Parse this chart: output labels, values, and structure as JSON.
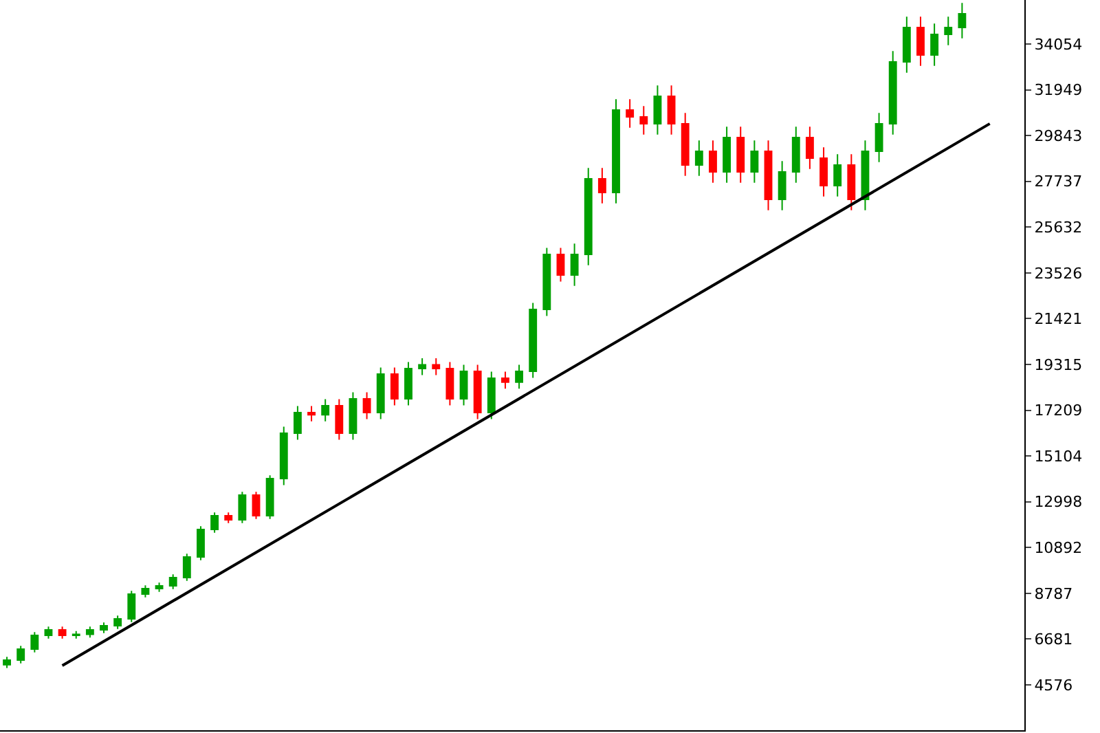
{
  "chart_data": {
    "type": "candlestick",
    "categories": [
      null,
      null,
      null,
      null,
      null,
      null,
      null,
      null,
      null,
      null,
      null,
      null,
      null,
      null,
      null,
      null,
      null,
      null,
      null,
      null,
      null,
      null,
      null,
      null,
      null,
      null,
      null,
      null,
      null,
      null,
      null,
      null,
      null,
      null,
      null,
      null,
      null,
      null,
      null,
      null,
      null,
      null,
      null,
      null,
      null,
      null,
      null,
      null,
      null,
      null,
      null,
      null,
      null,
      null,
      null,
      null,
      null,
      null,
      null,
      null,
      null,
      null,
      null,
      null,
      null,
      null,
      null,
      null,
      null,
      null,
      null,
      null
    ],
    "ohlc": [
      [
        5500,
        5865,
        5350,
        5715
      ],
      [
        5715,
        6371,
        5565,
        6221
      ],
      [
        6221,
        7003,
        6071,
        6853
      ],
      [
        6853,
        7256,
        6703,
        7106
      ],
      [
        7106,
        7256,
        6703,
        6853
      ],
      [
        6853,
        7050,
        6703,
        6900
      ],
      [
        6900,
        7256,
        6750,
        7106
      ],
      [
        7106,
        7446,
        6956,
        7296
      ],
      [
        7296,
        7762,
        7146,
        7612
      ],
      [
        7612,
        8901,
        7462,
        8751
      ],
      [
        8751,
        9154,
        8601,
        9004
      ],
      [
        9004,
        9281,
        8854,
        9131
      ],
      [
        9131,
        9660,
        8981,
        9510
      ],
      [
        9510,
        10609,
        9360,
        10459
      ],
      [
        10459,
        11874,
        10309,
        11724
      ],
      [
        11724,
        12507,
        11574,
        12357
      ],
      [
        12357,
        12507,
        12017,
        12167
      ],
      [
        12167,
        13456,
        12017,
        13306
      ],
      [
        13306,
        13456,
        12207,
        12357
      ],
      [
        12357,
        14215,
        12207,
        14065
      ],
      [
        14065,
        16453,
        13765,
        16153
      ],
      [
        16153,
        17401,
        15853,
        17101
      ],
      [
        17101,
        17401,
        16700,
        17000
      ],
      [
        17000,
        17718,
        16700,
        17418
      ],
      [
        17418,
        17718,
        15853,
        16153
      ],
      [
        16153,
        18034,
        15853,
        17734
      ],
      [
        17734,
        18034,
        16801,
        17101
      ],
      [
        17101,
        19173,
        16801,
        18873
      ],
      [
        18873,
        19173,
        17434,
        17734
      ],
      [
        17734,
        19426,
        17434,
        19126
      ],
      [
        19126,
        19600,
        18826,
        19300
      ],
      [
        19300,
        19600,
        18826,
        19126
      ],
      [
        19126,
        19426,
        17434,
        17734
      ],
      [
        17734,
        19299,
        17434,
        18999
      ],
      [
        18999,
        19299,
        16801,
        17101
      ],
      [
        17101,
        18983,
        16801,
        18683
      ],
      [
        18683,
        18983,
        18200,
        18500
      ],
      [
        18500,
        19299,
        18200,
        18999
      ],
      [
        18999,
        22146,
        18699,
        21846
      ],
      [
        21846,
        24676,
        21546,
        24376
      ],
      [
        24376,
        24676,
        23127,
        23427
      ],
      [
        23427,
        24876,
        22927,
        24376
      ],
      [
        24376,
        28356,
        23876,
        27856
      ],
      [
        27856,
        28356,
        26723,
        27223
      ],
      [
        27223,
        31519,
        26723,
        31019
      ],
      [
        31019,
        31519,
        30202,
        30702
      ],
      [
        30702,
        31202,
        29886,
        30386
      ],
      [
        30386,
        32151,
        29886,
        31651
      ],
      [
        31651,
        32151,
        29886,
        30386
      ],
      [
        30386,
        30886,
        27988,
        28488
      ],
      [
        28488,
        29621,
        27988,
        29121
      ],
      [
        29121,
        29621,
        27672,
        28172
      ],
      [
        28172,
        30253,
        27672,
        29753
      ],
      [
        29753,
        30253,
        27672,
        28172
      ],
      [
        28172,
        29621,
        27672,
        29121
      ],
      [
        29121,
        29621,
        26407,
        26907
      ],
      [
        26907,
        28672,
        26407,
        28172
      ],
      [
        28172,
        30253,
        27672,
        29753
      ],
      [
        29753,
        30253,
        28305,
        28805
      ],
      [
        28805,
        29305,
        27039,
        27539
      ],
      [
        27539,
        28988,
        27039,
        28488
      ],
      [
        28488,
        28988,
        26407,
        26907
      ],
      [
        26907,
        29621,
        26407,
        29121
      ],
      [
        29121,
        30886,
        28621,
        30386
      ],
      [
        30386,
        33733,
        29886,
        33233
      ],
      [
        33233,
        35314,
        32733,
        34814
      ],
      [
        34814,
        35314,
        33049,
        33549
      ],
      [
        33549,
        34998,
        33049,
        34498
      ],
      [
        34498,
        35314,
        33998,
        34814
      ],
      [
        34814,
        35947,
        34314,
        35447
      ],
      null,
      null
    ],
    "series": [
      {
        "type": "line",
        "values": [
          null,
          null,
          null,
          null,
          5460,
          null,
          null,
          null,
          null,
          null,
          null,
          null,
          null,
          null,
          null,
          null,
          null,
          null,
          null,
          null,
          null,
          null,
          null,
          null,
          null,
          null,
          null,
          null,
          null,
          null,
          null,
          null,
          null,
          null,
          null,
          null,
          null,
          null,
          null,
          null,
          null,
          null,
          null,
          null,
          null,
          null,
          null,
          null,
          null,
          null,
          null,
          null,
          null,
          null,
          null,
          null,
          null,
          null,
          null,
          null,
          null,
          null,
          null,
          null,
          null,
          null,
          null,
          null,
          null,
          null,
          null,
          30390
        ],
        "color": "#000000"
      }
    ],
    "ylim": [
      2488,
      36079
    ],
    "yticks": [
      4576,
      6681,
      8787,
      10892,
      12998,
      15104,
      17209,
      19315,
      21421,
      23526,
      25632,
      27737,
      29843,
      31949,
      34054
    ],
    "colors": [
      "#00a000",
      "#00a000",
      "#00a000",
      "#00a000",
      "#ff0000",
      "#00a000",
      "#00a000",
      "#00a000",
      "#00a000",
      "#00a000",
      "#00a000",
      "#00a000",
      "#00a000",
      "#00a000",
      "#00a000",
      "#00a000",
      "#ff0000",
      "#00a000",
      "#ff0000",
      "#00a000",
      "#00a000",
      "#00a000",
      "#ff0000",
      "#00a000",
      "#ff0000",
      "#00a000",
      "#ff0000",
      "#00a000",
      "#ff0000",
      "#00a000",
      "#00a000",
      "#ff0000",
      "#ff0000",
      "#00a000",
      "#ff0000",
      "#00a000",
      "#ff0000",
      "#00a000",
      "#00a000",
      "#00a000",
      "#ff0000",
      "#00a000",
      "#00a000",
      "#ff0000",
      "#00a000",
      "#ff0000",
      "#ff0000",
      "#00a000",
      "#ff0000",
      "#ff0000",
      "#00a000",
      "#ff0000",
      "#00a000",
      "#ff0000",
      "#00a000",
      "#ff0000",
      "#00a000",
      "#00a000",
      "#ff0000",
      "#ff0000",
      "#00a000",
      "#ff0000",
      "#00a000",
      "#00a000",
      "#00a000",
      "#00a000",
      "#ff0000",
      "#00a000",
      "#00a000",
      "#00a000",
      null,
      null
    ]
  }
}
